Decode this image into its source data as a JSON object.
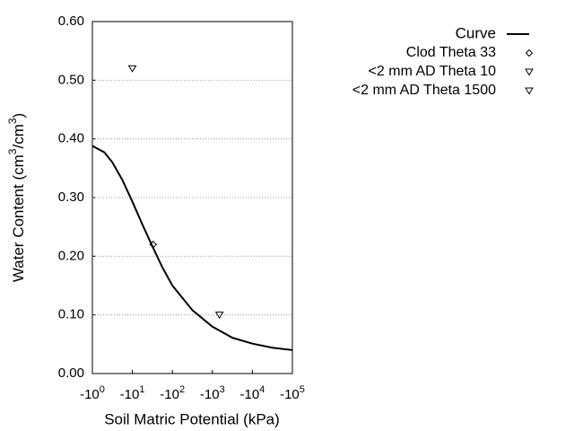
{
  "chart_data": {
    "type": "line",
    "xlabel": "Soil Matric Potential (kPa)",
    "ylabel": [
      {
        "text": "Water Content (cm"
      },
      {
        "text": "3",
        "sup": true
      },
      {
        "text": "/cm"
      },
      {
        "text": "3",
        "sup": true
      },
      {
        "text": ")"
      }
    ],
    "xscale": "log",
    "xlim": [
      -1,
      -100000
    ],
    "xticks": [
      {
        "value": -1,
        "label": "-10",
        "label_sup": "0"
      },
      {
        "value": -10,
        "label": "-10",
        "label_sup": "1"
      },
      {
        "value": -100,
        "label": "-10",
        "label_sup": "2"
      },
      {
        "value": -1000,
        "label": "-10",
        "label_sup": "3"
      },
      {
        "value": -10000,
        "label": "-10",
        "label_sup": "4"
      },
      {
        "value": -100000,
        "label": "-10",
        "label_sup": "5"
      }
    ],
    "ylim": [
      0,
      0.6
    ],
    "yticks": [
      {
        "value": 0,
        "label": "0.00"
      },
      {
        "value": 0.1,
        "label": "0.10"
      },
      {
        "value": 0.2,
        "label": "0.20"
      },
      {
        "value": 0.3,
        "label": "0.30"
      },
      {
        "value": 0.4,
        "label": "0.40"
      },
      {
        "value": 0.5,
        "label": "0.50"
      },
      {
        "value": 0.6,
        "label": "0.60"
      }
    ],
    "grid": true,
    "legend": "top-right",
    "series": [
      {
        "name": "Curve",
        "color": "#000000",
        "marker": "none",
        "x": [
          -1,
          -2,
          -3.16,
          -5.62,
          -10,
          -17.8,
          -31.6,
          -56.2,
          -100,
          -316,
          -1000,
          -3162,
          -10000,
          -31623,
          -100000
        ],
        "values": [
          0.388,
          0.377,
          0.36,
          0.33,
          0.293,
          0.254,
          0.217,
          0.181,
          0.15,
          0.108,
          0.08,
          0.061,
          0.051,
          0.044,
          0.04
        ]
      },
      {
        "name": "Clod Theta 33",
        "color": "#000000",
        "marker": "diamond",
        "x": [
          -33
        ],
        "values": [
          0.22
        ]
      },
      {
        "name": "<2 mm AD Theta 10",
        "color": "#000000",
        "marker": "triangle",
        "x": [
          -10
        ],
        "values": [
          0.52
        ]
      },
      {
        "name": "<2 mm AD Theta 1500",
        "color": "#000000",
        "marker": "triangle",
        "x": [
          -1500
        ],
        "values": [
          0.1
        ]
      }
    ]
  }
}
